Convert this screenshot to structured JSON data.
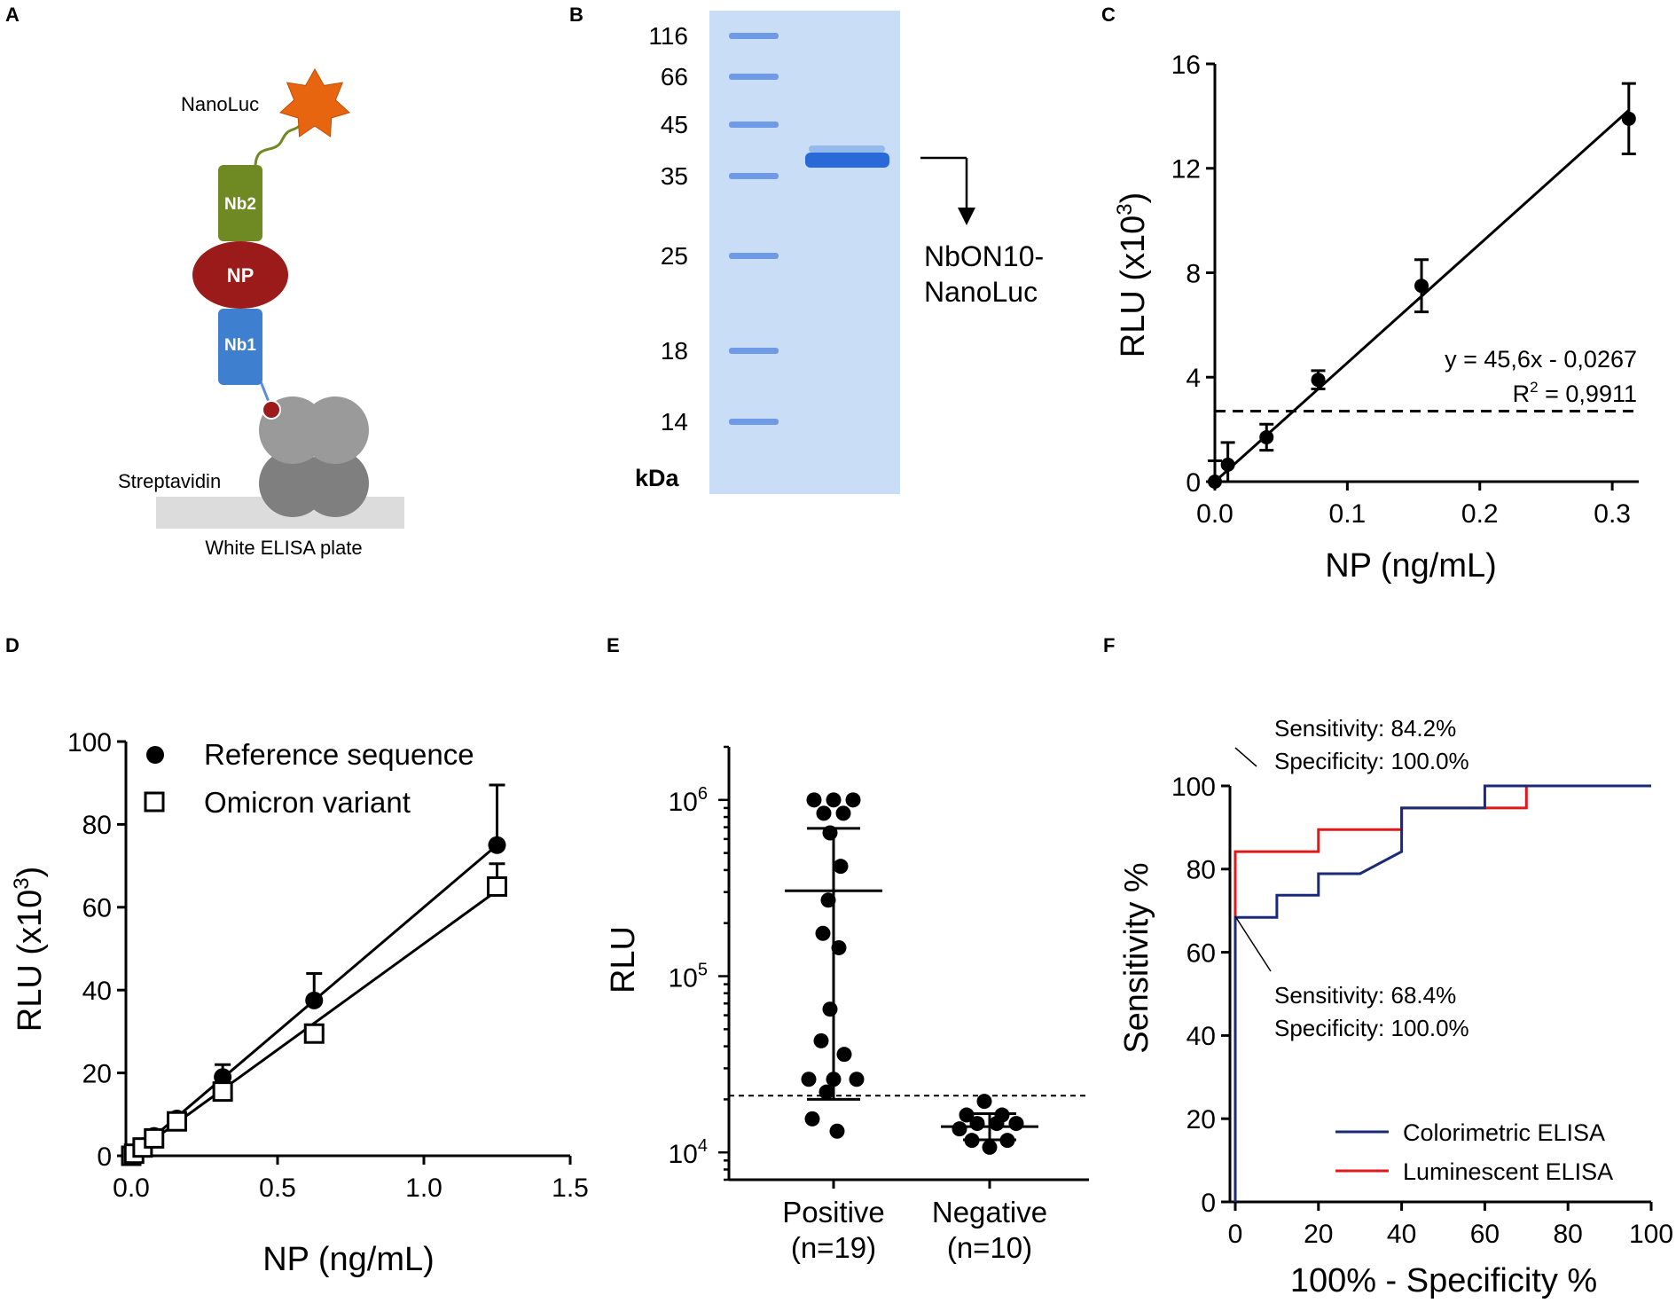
{
  "panel_letters": [
    "A",
    "B",
    "C",
    "D",
    "E",
    "F"
  ],
  "panel_a": {
    "nanoluc_label": "NanoLuc",
    "nb2_label": "Nb2",
    "np_label": "NP",
    "nb1_label": "Nb1",
    "streptavidin_label": "Streptavidin",
    "plate_label": "White ELISA plate",
    "colors": {
      "nanoluc": "#e8650f",
      "nb2": "#6f8a22",
      "np": "#9b1b1b",
      "nb1": "#3f7fcf",
      "streptavidin": "#8a8a8a",
      "plate": "#dcdcdc"
    }
  },
  "panel_b": {
    "marker_kda": [
      116,
      66,
      45,
      35,
      25,
      18,
      14
    ],
    "unit_label": "kDa",
    "band_label_line1": "NbON10-",
    "band_label_line2": "NanoLuc",
    "gel_color": "#c9def6",
    "band_color": "#2a6ad8"
  },
  "chart_data": [
    {
      "panel": "C",
      "type": "scatter",
      "xlabel": "NP (ng/mL)",
      "ylabel": "RLU (x10",
      "ylabel_exp": "3",
      "ylabel_close": ")",
      "xlim": [
        0,
        0.32
      ],
      "ylim": [
        0,
        16
      ],
      "xticks": [
        0.0,
        0.1,
        0.2,
        0.3
      ],
      "xtick_labels": [
        "0.0",
        "0.1",
        "0.2",
        "0.3"
      ],
      "yticks": [
        0,
        4,
        8,
        12,
        16
      ],
      "points": [
        {
          "x": 0.0,
          "y": 0.0,
          "err": 0.8
        },
        {
          "x": 0.0098,
          "y": 0.65,
          "err": 0.85
        },
        {
          "x": 0.039,
          "y": 1.7,
          "err": 0.5
        },
        {
          "x": 0.078,
          "y": 3.9,
          "err": 0.35
        },
        {
          "x": 0.156,
          "y": 7.5,
          "err": 1.0
        },
        {
          "x": 0.3125,
          "y": 13.9,
          "err": 1.35
        }
      ],
      "fit": {
        "slope": 45.6,
        "intercept": -0.0267,
        "x_range": [
          0.0,
          0.3125
        ]
      },
      "threshold": 2.7,
      "equation": "y = 45,6x - 0,0267",
      "r2_prefix": "R",
      "r2_exp": "2",
      "r2_value": " = 0,9911"
    },
    {
      "panel": "D",
      "type": "scatter",
      "xlabel": "NP (ng/mL)",
      "ylabel": "RLU (x10",
      "ylabel_exp": "3",
      "ylabel_close": ")",
      "xlim": [
        0,
        1.5
      ],
      "ylim": [
        0,
        100
      ],
      "xticks": [
        0.0,
        0.5,
        1.0,
        1.5
      ],
      "xtick_labels": [
        "0.0",
        "0.5",
        "1.0",
        "1.5"
      ],
      "yticks": [
        0,
        20,
        40,
        60,
        80,
        100
      ],
      "series": [
        {
          "name": "Reference sequence",
          "marker": "filled-circle",
          "points": [
            {
              "x": 0.0,
              "y": 0.3,
              "err": 0.5
            },
            {
              "x": 0.0098,
              "y": 0.6,
              "err": 0.6
            },
            {
              "x": 0.039,
              "y": 2.3,
              "err": 0.6
            },
            {
              "x": 0.078,
              "y": 4.8,
              "err": 0.8
            },
            {
              "x": 0.156,
              "y": 9.0,
              "err": 1.0
            },
            {
              "x": 0.3125,
              "y": 19.0,
              "err": 3.0
            },
            {
              "x": 0.625,
              "y": 37.5,
              "err": 6.5
            },
            {
              "x": 1.25,
              "y": 75.0,
              "err": 14.5
            }
          ],
          "fit_end": [
            1.25,
            75.0
          ]
        },
        {
          "name": "Omicron variant",
          "marker": "open-square",
          "points": [
            {
              "x": 0.0,
              "y": 0.0,
              "err": 0.4
            },
            {
              "x": 0.0098,
              "y": 0.5,
              "err": 0.5
            },
            {
              "x": 0.039,
              "y": 2.0,
              "err": 0.5
            },
            {
              "x": 0.078,
              "y": 4.2,
              "err": 0.6
            },
            {
              "x": 0.156,
              "y": 8.3,
              "err": 0.8
            },
            {
              "x": 0.3125,
              "y": 15.5,
              "err": 1.5
            },
            {
              "x": 0.625,
              "y": 29.5,
              "err": 1.0
            },
            {
              "x": 1.25,
              "y": 65.0,
              "err": 5.5
            }
          ],
          "fit_end": [
            1.25,
            64.0
          ]
        }
      ]
    },
    {
      "panel": "E",
      "type": "scatter",
      "ylabel": "RLU",
      "yscale": "log",
      "ylim": [
        7000,
        2000000
      ],
      "ytick_exponents": [
        "4",
        "5",
        "6"
      ],
      "ytick_values": [
        10000,
        100000,
        1000000
      ],
      "tick_base": "10",
      "threshold": 21000,
      "categories": [
        {
          "label_line1": "Positive",
          "label_line2": "(n=19)",
          "mean": 305000,
          "sd_low": 20000,
          "sd_high": 690000,
          "points": [
            {
              "y": 1000000,
              "dx": -22
            },
            {
              "y": 1000000,
              "dx": 0
            },
            {
              "y": 1000000,
              "dx": 22
            },
            {
              "y": 840000,
              "dx": -11
            },
            {
              "y": 840000,
              "dx": 11
            },
            {
              "y": 650000,
              "dx": -4
            },
            {
              "y": 420000,
              "dx": 8
            },
            {
              "y": 270000,
              "dx": -6
            },
            {
              "y": 175000,
              "dx": -12
            },
            {
              "y": 145000,
              "dx": 6
            },
            {
              "y": 65000,
              "dx": -4
            },
            {
              "y": 43000,
              "dx": -14
            },
            {
              "y": 36000,
              "dx": 12
            },
            {
              "y": 26000,
              "dx": -28
            },
            {
              "y": 26000,
              "dx": 0
            },
            {
              "y": 26000,
              "dx": 26
            },
            {
              "y": 22000,
              "dx": -8
            },
            {
              "y": 15500,
              "dx": -24
            },
            {
              "y": 13200,
              "dx": 4
            }
          ]
        },
        {
          "label_line1": "Negative",
          "label_line2": "(n=10)",
          "mean": 14000,
          "sd_low": 11800,
          "sd_high": 16600,
          "points": [
            {
              "y": 19500,
              "dx": -6
            },
            {
              "y": 16300,
              "dx": -26
            },
            {
              "y": 16300,
              "dx": 14
            },
            {
              "y": 14600,
              "dx": -14
            },
            {
              "y": 14600,
              "dx": 8
            },
            {
              "y": 14600,
              "dx": 30
            },
            {
              "y": 13600,
              "dx": -34
            },
            {
              "y": 11700,
              "dx": -20
            },
            {
              "y": 11700,
              "dx": 20
            },
            {
              "y": 10700,
              "dx": 0
            }
          ]
        }
      ]
    },
    {
      "panel": "F",
      "type": "line",
      "xlabel": "100% - Specificity %",
      "ylabel": "Sensitivity %",
      "xlim": [
        0,
        100
      ],
      "ylim": [
        0,
        100
      ],
      "xticks": [
        0,
        20,
        40,
        60,
        80,
        100
      ],
      "yticks": [
        0,
        20,
        40,
        60,
        80,
        100
      ],
      "series": [
        {
          "name": "Colorimetric ELISA",
          "color": "#1b2a78",
          "x": [
            0,
            0,
            10,
            10,
            20,
            20,
            30,
            40,
            40,
            60,
            60,
            100
          ],
          "y": [
            0,
            68.4,
            68.4,
            73.7,
            73.7,
            78.9,
            78.9,
            84.2,
            94.7,
            94.7,
            100,
            100
          ]
        },
        {
          "name": "Luminescent ELISA",
          "color": "#e01818",
          "x": [
            0,
            0,
            20,
            20,
            40,
            40,
            60,
            60,
            70,
            70,
            100
          ],
          "y": [
            0,
            84.2,
            84.2,
            89.5,
            89.5,
            94.7,
            94.7,
            94.7,
            94.7,
            100,
            100
          ]
        }
      ],
      "annotations": [
        {
          "sens": "Sensitivity: 84.2%",
          "spec": "Specificity: 100.0%",
          "at": [
            0,
            84.2
          ],
          "position": "above"
        },
        {
          "sens": "Sensitivity: 68.4%",
          "spec": "Specificity: 100.0%",
          "at": [
            0,
            68.4
          ],
          "position": "below"
        }
      ]
    }
  ]
}
